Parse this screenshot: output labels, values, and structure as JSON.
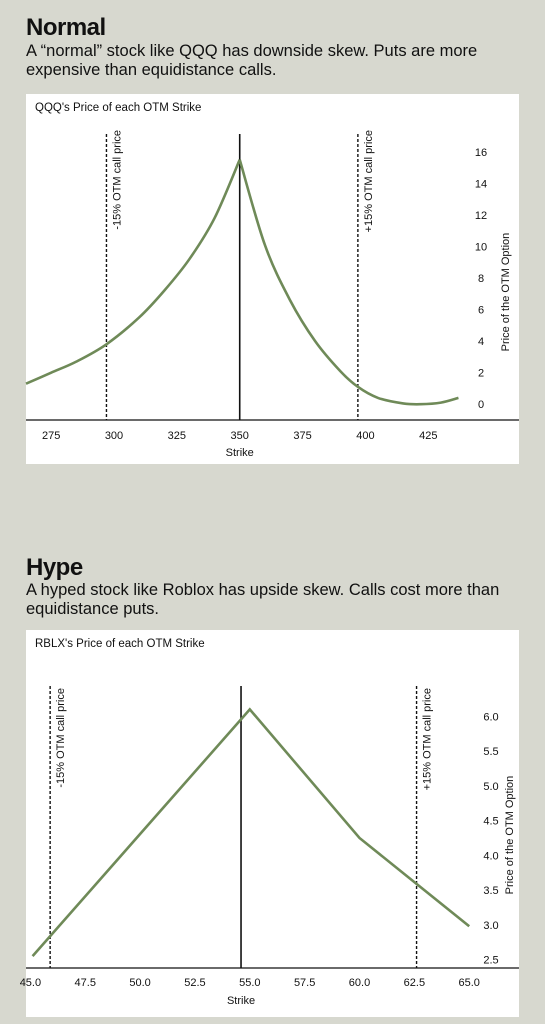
{
  "sections": [
    {
      "heading": "Normal",
      "description": "A “normal” stock like QQQ has downside skew. Puts are more expensive than equidistance calls."
    },
    {
      "heading": "Hype",
      "description": "A hyped stock like Roblox has upside skew. Calls cost more than equidistance puts."
    }
  ],
  "colors": {
    "curve": "#6f8a58",
    "background": "#d7d8cf",
    "panel": "#ffffff"
  },
  "chart_data": [
    {
      "type": "line",
      "title": "QQQ's Price of each OTM Strike",
      "xlabel": "Strike",
      "ylabel": "Price of the OTM Option",
      "xlim": [
        265,
        440
      ],
      "ylim": [
        -1,
        17
      ],
      "x_ticks": [
        "275",
        "300",
        "325",
        "350",
        "375",
        "400",
        "425"
      ],
      "y_ticks": [
        "0",
        "2",
        "4",
        "6",
        "8",
        "10",
        "12",
        "14",
        "16"
      ],
      "reference_lines": [
        {
          "x": 297,
          "label": "-15% OTM call price",
          "style": "dashed"
        },
        {
          "x": 350,
          "label": "",
          "style": "solid"
        },
        {
          "x": 397,
          "label": "+15% OTM call price",
          "style": "dashed"
        }
      ],
      "series": [
        {
          "x": [
            265,
            275,
            285,
            297,
            310,
            320,
            330,
            340,
            350,
            360,
            370,
            380,
            390,
            397,
            405,
            415,
            422,
            430,
            437
          ],
          "values": [
            1.3,
            2.0,
            2.7,
            3.8,
            5.5,
            7.2,
            9.2,
            11.8,
            15.5,
            10.1,
            6.6,
            4.0,
            2.1,
            1.1,
            0.4,
            0.05,
            0.0,
            0.1,
            0.4
          ]
        }
      ]
    },
    {
      "type": "line",
      "title": "RBLX's Price of each OTM Strike",
      "xlabel": "Strike",
      "ylabel": "Price of the OTM Option",
      "xlim": [
        44.8,
        65.4
      ],
      "ylim": [
        2.25,
        6.35
      ],
      "x_ticks": [
        "45.0",
        "47.5",
        "50.0",
        "52.5",
        "55.0",
        "57.5",
        "60.0",
        "62.5",
        "65.0"
      ],
      "y_ticks": [
        "2.5",
        "3.0",
        "3.5",
        "4.0",
        "4.5",
        "5.0",
        "5.5",
        "6.0"
      ],
      "reference_lines": [
        {
          "x": 45.9,
          "label": "-15% OTM call price",
          "style": "dashed"
        },
        {
          "x": 54.6,
          "label": "",
          "style": "solid"
        },
        {
          "x": 62.6,
          "label": "+15% OTM call price",
          "style": "dashed"
        }
      ],
      "series": [
        {
          "x": [
            45.1,
            55.0,
            60.0,
            65.0
          ],
          "values": [
            2.55,
            6.1,
            4.25,
            2.98
          ]
        }
      ]
    }
  ]
}
